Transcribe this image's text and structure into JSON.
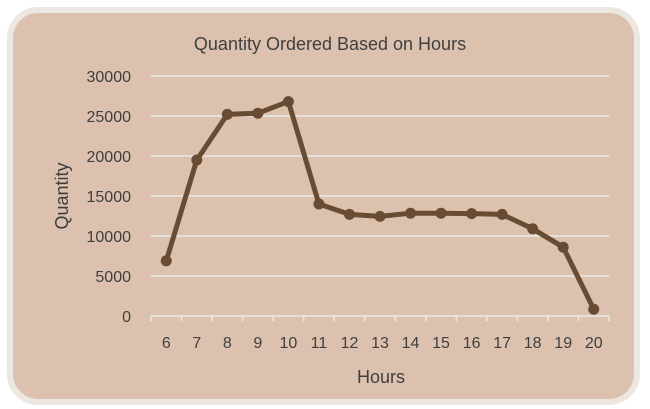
{
  "chart_data": {
    "type": "line",
    "title": "Quantity Ordered Based on Hours",
    "xlabel": "Hours",
    "ylabel": "Quantity",
    "categories": [
      "6",
      "7",
      "8",
      "9",
      "10",
      "11",
      "12",
      "13",
      "14",
      "15",
      "16",
      "17",
      "18",
      "19",
      "20"
    ],
    "series": [
      {
        "values": [
          6900,
          19500,
          25200,
          25350,
          26800,
          14000,
          12700,
          12450,
          12850,
          12850,
          12800,
          12700,
          10900,
          8600,
          850
        ]
      }
    ],
    "ylim": [
      0,
      30000
    ],
    "yticks": [
      "0",
      "5000",
      "10000",
      "15000",
      "20000",
      "25000",
      "30000"
    ],
    "grid": true,
    "legend": "none"
  },
  "colors": {
    "panel_fill": "#dcc2ae",
    "panel_edge": "#ede7e2",
    "line": "#674c33",
    "gridline": "#eaeaea",
    "text": "#3f3f3f"
  }
}
